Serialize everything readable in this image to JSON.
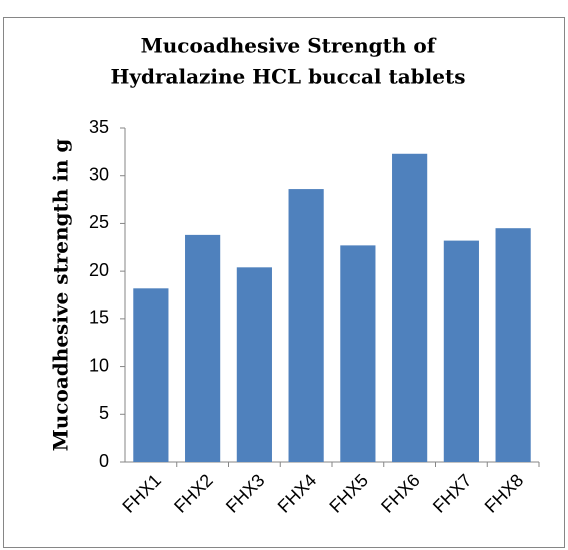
{
  "chart_data": {
    "type": "bar",
    "title": [
      "Mucoadhesive Strength of",
      "Hydralazine HCL buccal tablets"
    ],
    "y_label": "Mucoadhesive strength in g",
    "categories": [
      "FHX1",
      "FHX2",
      "FHX3",
      "FHX4",
      "FHX5",
      "FHX6",
      "FHX7",
      "FHX8"
    ],
    "values": [
      18.2,
      23.8,
      20.4,
      28.6,
      22.7,
      32.3,
      23.2,
      24.5
    ],
    "color": "#4f81bd",
    "ylim": [
      0,
      35
    ],
    "yticks": [
      0,
      5,
      10,
      15,
      20,
      25,
      30,
      35
    ],
    "grid": false
  }
}
